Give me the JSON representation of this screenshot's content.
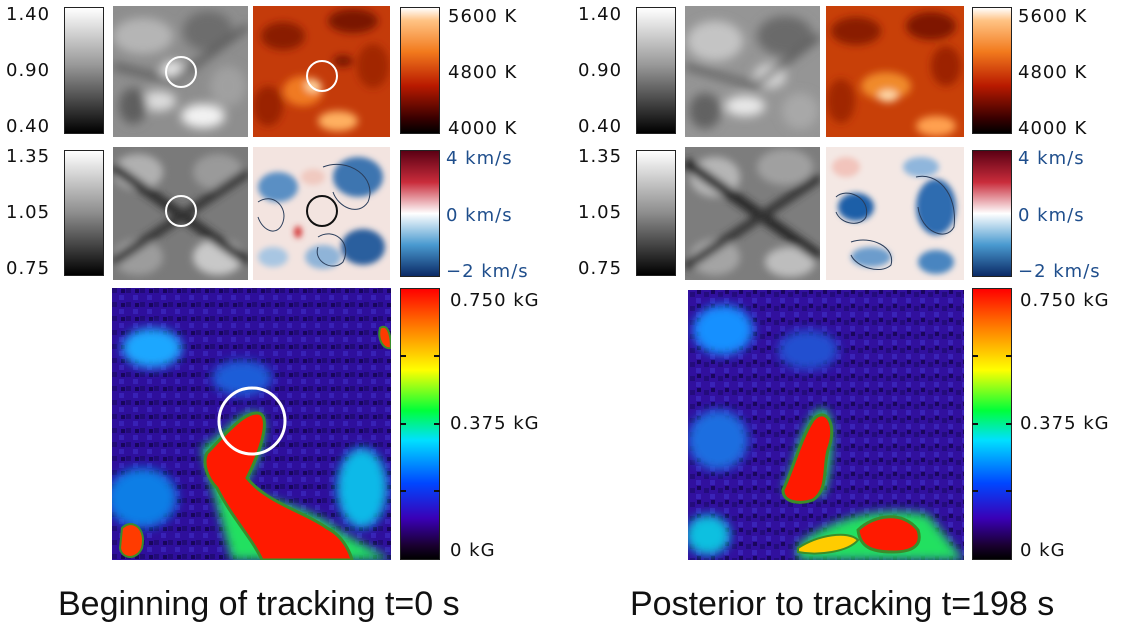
{
  "left": {
    "intensity_ticks": [
      "1.40",
      "0.90",
      "0.40"
    ],
    "continuum_ticks": [
      "1.35",
      "1.05",
      "0.75"
    ],
    "temp_ticks": [
      "5600 K",
      "4800 K",
      "4000 K"
    ],
    "vel_ticks": [
      "4 km/s",
      "0 km/s",
      "−2 km/s"
    ],
    "mag_ticks": [
      "0.750 kG",
      "0.375 kG",
      "0 kG"
    ],
    "caption": "Beginning of tracking t=0 s"
  },
  "right": {
    "intensity_ticks": [
      "1.40",
      "0.90",
      "0.40"
    ],
    "continuum_ticks": [
      "1.35",
      "1.05",
      "0.75"
    ],
    "temp_ticks": [
      "5600 K",
      "4800 K",
      "4000 K"
    ],
    "vel_ticks": [
      "4 km/s",
      "0 km/s",
      "−2 km/s"
    ],
    "mag_ticks": [
      "0.750 kG",
      "0.375 kG",
      "0 kG"
    ],
    "caption": "Posterior to tracking t=198 s"
  },
  "colors": {
    "tracking_circle": "#ffffff",
    "tracking_circle_dark": "#111111",
    "contour_line": "#2a3d5a",
    "mag_contour": "#3a8d2b"
  }
}
